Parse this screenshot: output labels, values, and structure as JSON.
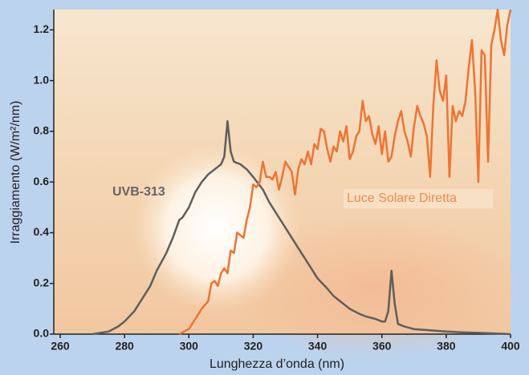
{
  "chart_data": {
    "type": "line",
    "x_label": "Lunghezza d’onda  (nm)",
    "y_label": "Irraggiamento (W/m²/nm)",
    "xlim": [
      258,
      400
    ],
    "ylim": [
      0,
      1.28
    ],
    "xticks": [
      260,
      280,
      300,
      320,
      340,
      360,
      380,
      400
    ],
    "yticks": [
      {
        "value": 0,
        "label": "0.0"
      },
      0.2,
      0.4,
      0.6,
      0.8,
      {
        "value": 1,
        "label": "1.0"
      },
      1.2
    ],
    "series": [
      {
        "name": "UVB-313",
        "color": "#5e5e5e",
        "x": [
          270,
          275,
          278,
          280,
          283,
          285,
          288,
          290,
          293,
          295,
          297,
          298,
          300,
          302,
          304,
          306,
          308,
          310,
          311,
          312,
          313,
          314,
          316,
          318,
          320,
          323,
          325,
          328,
          330,
          333,
          335,
          338,
          340,
          343,
          345,
          348,
          350,
          353,
          355,
          358,
          360,
          361,
          362,
          363,
          364,
          365,
          367,
          370,
          375,
          380,
          385,
          390,
          395,
          400
        ],
        "values": [
          0,
          0.01,
          0.03,
          0.05,
          0.09,
          0.13,
          0.19,
          0.25,
          0.32,
          0.38,
          0.45,
          0.46,
          0.5,
          0.56,
          0.6,
          0.63,
          0.65,
          0.67,
          0.7,
          0.84,
          0.72,
          0.68,
          0.67,
          0.65,
          0.62,
          0.57,
          0.52,
          0.46,
          0.42,
          0.36,
          0.32,
          0.26,
          0.22,
          0.18,
          0.15,
          0.12,
          0.1,
          0.08,
          0.07,
          0.06,
          0.05,
          0.05,
          0.09,
          0.25,
          0.12,
          0.04,
          0.03,
          0.02,
          0.015,
          0.01,
          0.007,
          0.005,
          0.003,
          0
        ],
        "label_color": "#666666"
      },
      {
        "name": "Luce Solare Diretta",
        "color": "#ee7434",
        "x": [
          297,
          300,
          302,
          304,
          306,
          307,
          308,
          309,
          310,
          311,
          312,
          313,
          314,
          315,
          316,
          317,
          318,
          319,
          320,
          321,
          322,
          323,
          324,
          325,
          326,
          327,
          328,
          329,
          330,
          331,
          332,
          333,
          334,
          335,
          336,
          337,
          338,
          339,
          340,
          341,
          342,
          343,
          344,
          345,
          346,
          347,
          348,
          349,
          350,
          351,
          352,
          353,
          354,
          355,
          356,
          357,
          358,
          359,
          360,
          361,
          362,
          363,
          364,
          365,
          366,
          367,
          368,
          369,
          370,
          371,
          372,
          373,
          374,
          375,
          376,
          377,
          378,
          379,
          380,
          381,
          382,
          383,
          384,
          385,
          386,
          387,
          388,
          389,
          390,
          391,
          392,
          393,
          394,
          395,
          396,
          397,
          398,
          399,
          400
        ],
        "values": [
          0,
          0.02,
          0.06,
          0.1,
          0.13,
          0.2,
          0.21,
          0.19,
          0.24,
          0.26,
          0.24,
          0.33,
          0.32,
          0.4,
          0.39,
          0.38,
          0.45,
          0.5,
          0.59,
          0.58,
          0.6,
          0.68,
          0.62,
          0.62,
          0.61,
          0.64,
          0.57,
          0.62,
          0.68,
          0.66,
          0.64,
          0.55,
          0.65,
          0.69,
          0.67,
          0.72,
          0.67,
          0.75,
          0.73,
          0.81,
          0.8,
          0.73,
          0.68,
          0.74,
          0.72,
          0.8,
          0.76,
          0.82,
          0.69,
          0.72,
          0.78,
          0.8,
          0.92,
          0.84,
          0.86,
          0.79,
          0.75,
          0.82,
          0.71,
          0.8,
          0.68,
          0.7,
          0.78,
          0.84,
          0.88,
          0.8,
          0.76,
          0.7,
          0.82,
          0.9,
          0.86,
          0.83,
          0.78,
          0.62,
          0.9,
          1.08,
          0.96,
          0.92,
          1.02,
          0.62,
          0.9,
          0.84,
          0.88,
          0.86,
          0.92,
          1.05,
          1.16,
          0.96,
          0.6,
          1.12,
          1.1,
          0.68,
          1.14,
          1.2,
          1.28,
          1.16,
          1.1,
          1.22,
          1.28
        ],
        "label_color": "#f28a4c"
      }
    ]
  }
}
